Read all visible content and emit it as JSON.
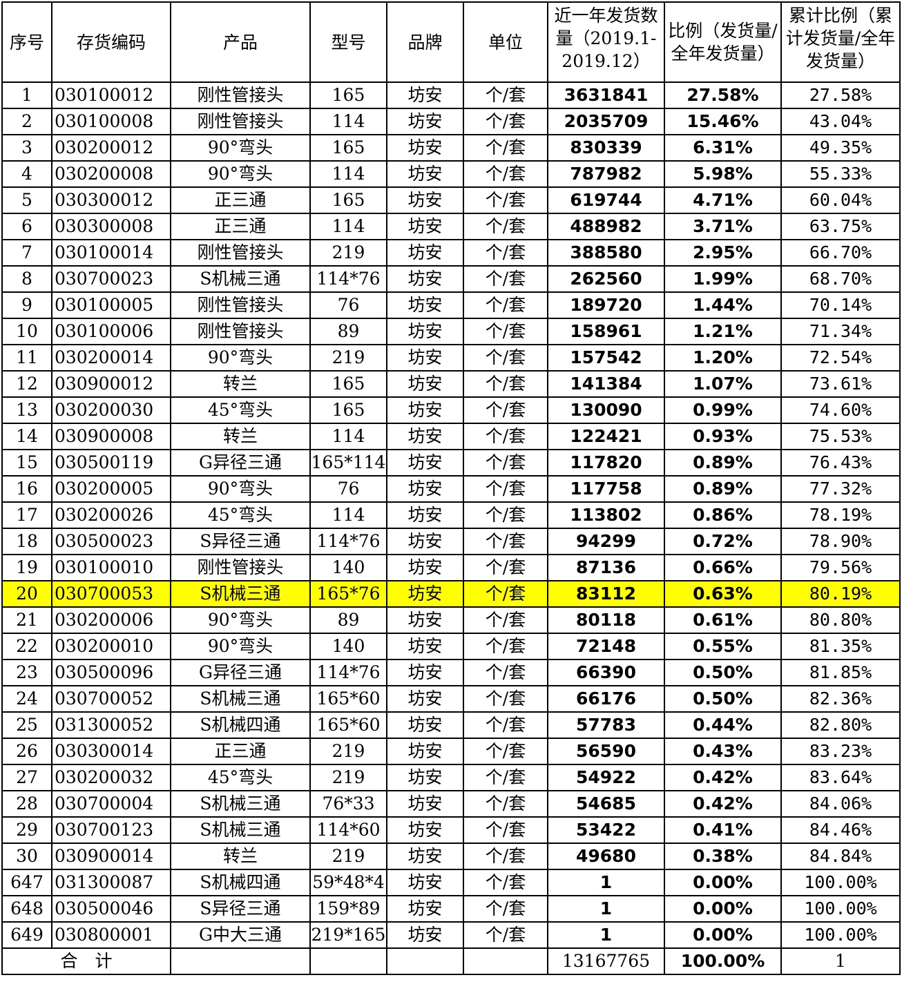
{
  "headers": {
    "seq": "序号",
    "code": "存货编码",
    "product": "产品",
    "model": "型号",
    "brand": "品牌",
    "unit": "单位",
    "qty": "近一年发货数量（2019.1-2019.12）",
    "ratio": "比例（发货量/全年发货量）",
    "cum": "累计比例（累计发货量/全年发货量）"
  },
  "rows": [
    {
      "seq": "1",
      "code": "030100012",
      "product": "刚性管接头",
      "model": "165",
      "brand": "坊安",
      "unit": "个/套",
      "qty": "3631841",
      "ratio": "27.58%",
      "cum": "27.58%"
    },
    {
      "seq": "2",
      "code": "030100008",
      "product": "刚性管接头",
      "model": "114",
      "brand": "坊安",
      "unit": "个/套",
      "qty": "2035709",
      "ratio": "15.46%",
      "cum": "43.04%"
    },
    {
      "seq": "3",
      "code": "030200012",
      "product": "90°弯头",
      "model": "165",
      "brand": "坊安",
      "unit": "个/套",
      "qty": "830339",
      "ratio": "6.31%",
      "cum": "49.35%"
    },
    {
      "seq": "4",
      "code": "030200008",
      "product": "90°弯头",
      "model": "114",
      "brand": "坊安",
      "unit": "个/套",
      "qty": "787982",
      "ratio": "5.98%",
      "cum": "55.33%"
    },
    {
      "seq": "5",
      "code": "030300012",
      "product": "正三通",
      "model": "165",
      "brand": "坊安",
      "unit": "个/套",
      "qty": "619744",
      "ratio": "4.71%",
      "cum": "60.04%"
    },
    {
      "seq": "6",
      "code": "030300008",
      "product": "正三通",
      "model": "114",
      "brand": "坊安",
      "unit": "个/套",
      "qty": "488982",
      "ratio": "3.71%",
      "cum": "63.75%"
    },
    {
      "seq": "7",
      "code": "030100014",
      "product": "刚性管接头",
      "model": "219",
      "brand": "坊安",
      "unit": "个/套",
      "qty": "388580",
      "ratio": "2.95%",
      "cum": "66.70%"
    },
    {
      "seq": "8",
      "code": "030700023",
      "product": "S机械三通",
      "model": "114*76",
      "brand": "坊安",
      "unit": "个/套",
      "qty": "262560",
      "ratio": "1.99%",
      "cum": "68.70%"
    },
    {
      "seq": "9",
      "code": "030100005",
      "product": "刚性管接头",
      "model": "76",
      "brand": "坊安",
      "unit": "个/套",
      "qty": "189720",
      "ratio": "1.44%",
      "cum": "70.14%"
    },
    {
      "seq": "10",
      "code": "030100006",
      "product": "刚性管接头",
      "model": "89",
      "brand": "坊安",
      "unit": "个/套",
      "qty": "158961",
      "ratio": "1.21%",
      "cum": "71.34%"
    },
    {
      "seq": "11",
      "code": "030200014",
      "product": "90°弯头",
      "model": "219",
      "brand": "坊安",
      "unit": "个/套",
      "qty": "157542",
      "ratio": "1.20%",
      "cum": "72.54%"
    },
    {
      "seq": "12",
      "code": "030900012",
      "product": "转兰",
      "model": "165",
      "brand": "坊安",
      "unit": "个/套",
      "qty": "141384",
      "ratio": "1.07%",
      "cum": "73.61%"
    },
    {
      "seq": "13",
      "code": "030200030",
      "product": "45°弯头",
      "model": "165",
      "brand": "坊安",
      "unit": "个/套",
      "qty": "130090",
      "ratio": "0.99%",
      "cum": "74.60%"
    },
    {
      "seq": "14",
      "code": "030900008",
      "product": "转兰",
      "model": "114",
      "brand": "坊安",
      "unit": "个/套",
      "qty": "122421",
      "ratio": "0.93%",
      "cum": "75.53%"
    },
    {
      "seq": "15",
      "code": "030500119",
      "product": "G异径三通",
      "model": "165*114",
      "brand": "坊安",
      "unit": "个/套",
      "qty": "117820",
      "ratio": "0.89%",
      "cum": "76.43%"
    },
    {
      "seq": "16",
      "code": "030200005",
      "product": "90°弯头",
      "model": "76",
      "brand": "坊安",
      "unit": "个/套",
      "qty": "117758",
      "ratio": "0.89%",
      "cum": "77.32%"
    },
    {
      "seq": "17",
      "code": "030200026",
      "product": "45°弯头",
      "model": "114",
      "brand": "坊安",
      "unit": "个/套",
      "qty": "113802",
      "ratio": "0.86%",
      "cum": "78.19%"
    },
    {
      "seq": "18",
      "code": "030500023",
      "product": "S异径三通",
      "model": "114*76",
      "brand": "坊安",
      "unit": "个/套",
      "qty": "94299",
      "ratio": "0.72%",
      "cum": "78.90%"
    },
    {
      "seq": "19",
      "code": "030100010",
      "product": "刚性管接头",
      "model": "140",
      "brand": "坊安",
      "unit": "个/套",
      "qty": "87136",
      "ratio": "0.66%",
      "cum": "79.56%"
    },
    {
      "seq": "20",
      "code": "030700053",
      "product": "S机械三通",
      "model": "165*76",
      "brand": "坊安",
      "unit": "个/套",
      "qty": "83112",
      "ratio": "0.63%",
      "cum": "80.19%",
      "highlight": true
    },
    {
      "seq": "21",
      "code": "030200006",
      "product": "90°弯头",
      "model": "89",
      "brand": "坊安",
      "unit": "个/套",
      "qty": "80118",
      "ratio": "0.61%",
      "cum": "80.80%"
    },
    {
      "seq": "22",
      "code": "030200010",
      "product": "90°弯头",
      "model": "140",
      "brand": "坊安",
      "unit": "个/套",
      "qty": "72148",
      "ratio": "0.55%",
      "cum": "81.35%"
    },
    {
      "seq": "23",
      "code": "030500096",
      "product": "G异径三通",
      "model": "114*76",
      "brand": "坊安",
      "unit": "个/套",
      "qty": "66390",
      "ratio": "0.50%",
      "cum": "81.85%"
    },
    {
      "seq": "24",
      "code": "030700052",
      "product": "S机械三通",
      "model": "165*60",
      "brand": "坊安",
      "unit": "个/套",
      "qty": "66176",
      "ratio": "0.50%",
      "cum": "82.36%"
    },
    {
      "seq": "25",
      "code": "031300052",
      "product": "S机械四通",
      "model": "165*60",
      "brand": "坊安",
      "unit": "个/套",
      "qty": "57783",
      "ratio": "0.44%",
      "cum": "82.80%"
    },
    {
      "seq": "26",
      "code": "030300014",
      "product": "正三通",
      "model": "219",
      "brand": "坊安",
      "unit": "个/套",
      "qty": "56590",
      "ratio": "0.43%",
      "cum": "83.23%"
    },
    {
      "seq": "27",
      "code": "030200032",
      "product": "45°弯头",
      "model": "219",
      "brand": "坊安",
      "unit": "个/套",
      "qty": "54922",
      "ratio": "0.42%",
      "cum": "83.64%"
    },
    {
      "seq": "28",
      "code": "030700004",
      "product": "S机械三通",
      "model": "76*33",
      "brand": "坊安",
      "unit": "个/套",
      "qty": "54685",
      "ratio": "0.42%",
      "cum": "84.06%"
    },
    {
      "seq": "29",
      "code": "030700123",
      "product": "S机械三通",
      "model": "114*60",
      "brand": "坊安",
      "unit": "个/套",
      "qty": "53422",
      "ratio": "0.41%",
      "cum": "84.46%"
    },
    {
      "seq": "30",
      "code": "030900014",
      "product": "转兰",
      "model": "219",
      "brand": "坊安",
      "unit": "个/套",
      "qty": "49680",
      "ratio": "0.38%",
      "cum": "84.84%"
    },
    {
      "seq": "647",
      "code": "031300087",
      "product": "S机械四通",
      "model": "59*48*4",
      "brand": "坊安",
      "unit": "个/套",
      "qty": "1",
      "ratio": "0.00%",
      "cum": "100.00%"
    },
    {
      "seq": "648",
      "code": "030500046",
      "product": "S异径三通",
      "model": "159*89",
      "brand": "坊安",
      "unit": "个/套",
      "qty": "1",
      "ratio": "0.00%",
      "cum": "100.00%"
    },
    {
      "seq": "649",
      "code": "030800001",
      "product": "G中大三通",
      "model": "219*165",
      "brand": "坊安",
      "unit": "个/套",
      "qty": "1",
      "ratio": "0.00%",
      "cum": "100.00%"
    }
  ],
  "total": {
    "label": "合　计",
    "qty": "13167765",
    "ratio": "100.00%",
    "cum": "1"
  }
}
